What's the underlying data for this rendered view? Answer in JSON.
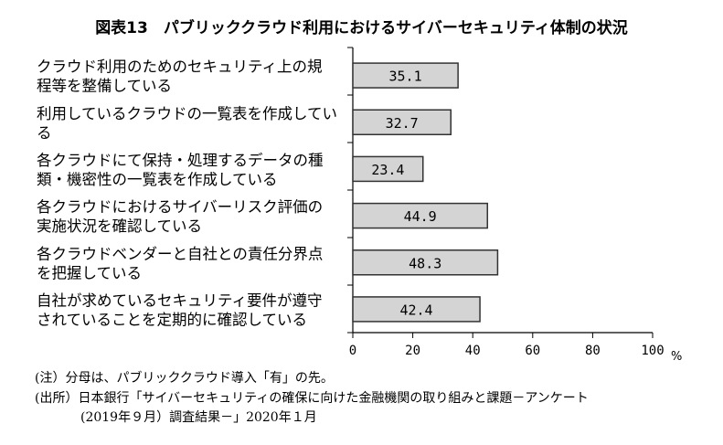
{
  "chart_data": {
    "type": "bar",
    "orientation": "horizontal",
    "title": "図表13　パブリッククラウド利用におけるサイバーセキュリティ体制の状況",
    "categories": [
      [
        "クラウド利用のためのセキュリティ上の規",
        "程等を整備している"
      ],
      [
        "利用しているクラウドの一覧表を作成してい",
        "る"
      ],
      [
        "各クラウドにて保持・処理するデータの種",
        "類・機密性の一覧表を作成している"
      ],
      [
        "各クラウドにおけるサイバーリスク評価の",
        "実施状況を確認している"
      ],
      [
        "各クラウドベンダーと自社との責任分界点",
        "を把握している"
      ],
      [
        "自社が求めているセキュリティ要件が遵守",
        "されていることを定期的に確認している"
      ]
    ],
    "values": [
      35.1,
      32.7,
      23.4,
      44.9,
      48.3,
      42.4
    ],
    "data_labels": [
      "35.1",
      "32.7",
      "23.4",
      "44.9",
      "48.3",
      "42.4"
    ],
    "xlim": [
      0,
      100
    ],
    "xticks": [
      "0",
      "20",
      "40",
      "60",
      "80",
      "100"
    ],
    "xunit": "%",
    "grid": false,
    "bar_color": "#d4d4d4",
    "bar_edge_color": "#333333"
  },
  "notes": {
    "note": "(注）分母は、パブリッククラウド導入「有」の先。",
    "source_line1": "(出所）日本銀行「サイバーセキュリティの確保に向けた金融機関の取り組みと課題－アンケート",
    "source_line2": "(2019年９月）調査結果－」2020年１月"
  }
}
